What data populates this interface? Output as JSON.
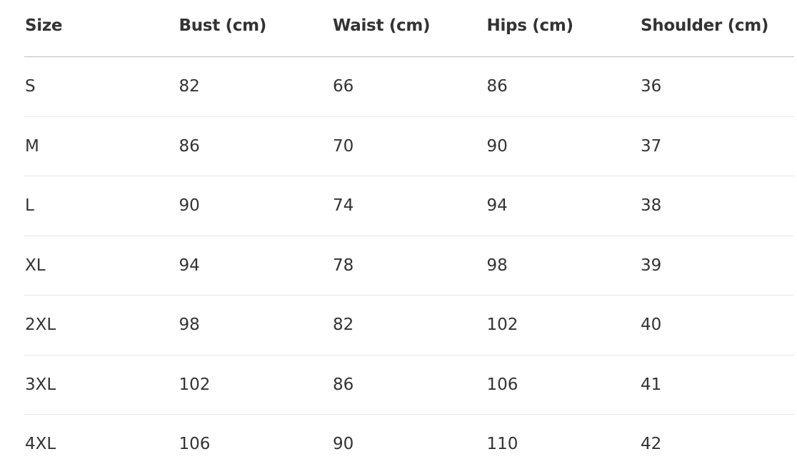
{
  "table": {
    "headers": [
      "Size",
      "Bust (cm)",
      "Waist (cm)",
      "Hips (cm)",
      "Shoulder (cm)"
    ],
    "rows": [
      [
        "S",
        "82",
        "66",
        "86",
        "36"
      ],
      [
        "M",
        "86",
        "70",
        "90",
        "37"
      ],
      [
        "L",
        "90",
        "74",
        "94",
        "38"
      ],
      [
        "XL",
        "94",
        "78",
        "98",
        "39"
      ],
      [
        "2XL",
        "98",
        "82",
        "102",
        "40"
      ],
      [
        "3XL",
        "102",
        "86",
        "106",
        "41"
      ],
      [
        "4XL",
        "106",
        "90",
        "110",
        "42"
      ]
    ]
  }
}
